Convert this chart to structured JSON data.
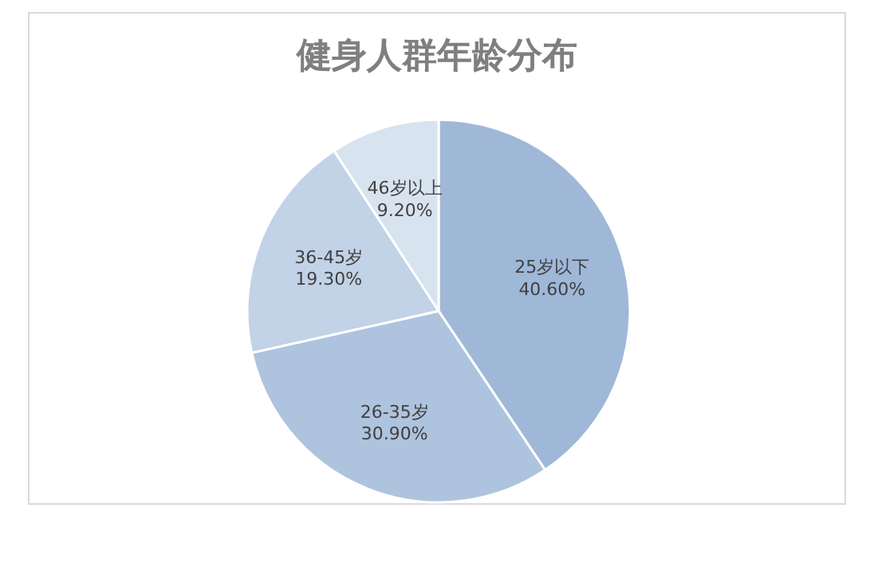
{
  "chart_data": {
    "type": "pie",
    "title": "健身人群年龄分布",
    "categories": [
      "25岁以下",
      "26-35岁",
      "36-45岁",
      "46岁以上"
    ],
    "values": [
      40.6,
      30.9,
      19.3,
      9.2
    ],
    "value_labels": [
      "40.60%",
      "30.90%",
      "19.30%",
      "9.20%"
    ],
    "colors": [
      "#9fb8d8",
      "#aec3de",
      "#c2d2e7",
      "#d8e3f0"
    ],
    "legend": false
  }
}
